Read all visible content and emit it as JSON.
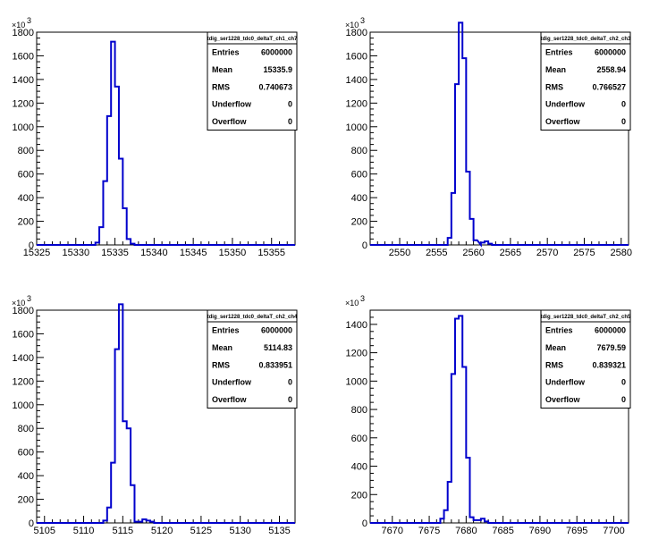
{
  "chart_data": [
    {
      "type": "bar",
      "style": "step-histogram",
      "title": "tdig_ser1228_tdc0_deltaT_ch1_ch7",
      "xlim": [
        15325,
        15358
      ],
      "xticks": [
        15325,
        15330,
        15335,
        15340,
        15345,
        15350,
        15355
      ],
      "ylim": [
        0,
        1800
      ],
      "yticks": [
        0,
        200,
        400,
        600,
        800,
        1000,
        1200,
        1400,
        1600,
        1800
      ],
      "y_exponent": "×10",
      "y_exponent_power": "3",
      "line_color": "#0000cc",
      "bin_width": 0.5,
      "bins": [
        {
          "x": 15332.5,
          "y": 20
        },
        {
          "x": 15333.0,
          "y": 150
        },
        {
          "x": 15333.5,
          "y": 540
        },
        {
          "x": 15334.0,
          "y": 1090
        },
        {
          "x": 15334.5,
          "y": 1720
        },
        {
          "x": 15335.0,
          "y": 1340
        },
        {
          "x": 15335.5,
          "y": 730
        },
        {
          "x": 15336.0,
          "y": 310
        },
        {
          "x": 15336.5,
          "y": 50
        },
        {
          "x": 15337.0,
          "y": 10
        }
      ],
      "stats": [
        {
          "label": "Entries",
          "value": "6000000"
        },
        {
          "label": "Mean",
          "value": "15335.9"
        },
        {
          "label": "RMS",
          "value": "0.740673"
        },
        {
          "label": "Underflow",
          "value": "0"
        },
        {
          "label": "Overflow",
          "value": "0"
        }
      ]
    },
    {
      "type": "bar",
      "style": "step-histogram",
      "title": "tdig_ser1228_tdc0_deltaT_ch2_ch3",
      "xlim": [
        2546,
        2581
      ],
      "xticks": [
        2550,
        2555,
        2560,
        2565,
        2570,
        2575,
        2580
      ],
      "ylim": [
        0,
        1800
      ],
      "yticks": [
        0,
        200,
        400,
        600,
        800,
        1000,
        1200,
        1400,
        1600,
        1800
      ],
      "y_exponent": "×10",
      "y_exponent_power": "3",
      "line_color": "#0000cc",
      "bin_width": 0.5,
      "bins": [
        {
          "x": 2556.5,
          "y": 60
        },
        {
          "x": 2557.0,
          "y": 440
        },
        {
          "x": 2557.5,
          "y": 1360
        },
        {
          "x": 2558.0,
          "y": 1880
        },
        {
          "x": 2558.5,
          "y": 1580
        },
        {
          "x": 2559.0,
          "y": 620
        },
        {
          "x": 2559.5,
          "y": 220
        },
        {
          "x": 2560.0,
          "y": 40
        },
        {
          "x": 2561.0,
          "y": 20
        },
        {
          "x": 2561.5,
          "y": 30
        },
        {
          "x": 2562.0,
          "y": 10
        }
      ],
      "stats": [
        {
          "label": "Entries",
          "value": "6000000"
        },
        {
          "label": "Mean",
          "value": "2558.94"
        },
        {
          "label": "RMS",
          "value": "0.766527"
        },
        {
          "label": "Underflow",
          "value": "0"
        },
        {
          "label": "Overflow",
          "value": "0"
        }
      ]
    },
    {
      "type": "bar",
      "style": "step-histogram",
      "title": "tdig_ser1228_tdc0_deltaT_ch2_ch4",
      "xlim": [
        5104,
        5137
      ],
      "xticks": [
        5105,
        5110,
        5115,
        5120,
        5125,
        5130,
        5135
      ],
      "ylim": [
        0,
        1800
      ],
      "yticks": [
        0,
        200,
        400,
        600,
        800,
        1000,
        1200,
        1400,
        1600,
        1800
      ],
      "y_exponent": "×10",
      "y_exponent_power": "3",
      "line_color": "#0000cc",
      "bin_width": 0.5,
      "bins": [
        {
          "x": 5112.5,
          "y": 20
        },
        {
          "x": 5113.0,
          "y": 130
        },
        {
          "x": 5113.5,
          "y": 510
        },
        {
          "x": 5114.0,
          "y": 1470
        },
        {
          "x": 5114.5,
          "y": 1850
        },
        {
          "x": 5115.0,
          "y": 860
        },
        {
          "x": 5115.5,
          "y": 800
        },
        {
          "x": 5116.0,
          "y": 320
        },
        {
          "x": 5116.5,
          "y": 10
        },
        {
          "x": 5117.0,
          "y": 10
        },
        {
          "x": 5117.5,
          "y": 30
        },
        {
          "x": 5118.0,
          "y": 20
        },
        {
          "x": 5118.5,
          "y": 10
        }
      ],
      "stats": [
        {
          "label": "Entries",
          "value": "6000000"
        },
        {
          "label": "Mean",
          "value": "5114.83"
        },
        {
          "label": "RMS",
          "value": "0.833951"
        },
        {
          "label": "Underflow",
          "value": "0"
        },
        {
          "label": "Overflow",
          "value": "0"
        }
      ]
    },
    {
      "type": "bar",
      "style": "step-histogram",
      "title": "tdig_ser1228_tdc0_deltaT_ch2_ch5",
      "xlim": [
        7667,
        7702
      ],
      "xticks": [
        7670,
        7675,
        7680,
        7685,
        7690,
        7695,
        7700
      ],
      "ylim": [
        0,
        1500
      ],
      "yticks": [
        0,
        200,
        400,
        600,
        800,
        1000,
        1200,
        1400
      ],
      "y_exponent": "×10",
      "y_exponent_power": "3",
      "line_color": "#0000cc",
      "bin_width": 0.5,
      "bins": [
        {
          "x": 7676.5,
          "y": 30
        },
        {
          "x": 7677.0,
          "y": 90
        },
        {
          "x": 7677.5,
          "y": 290
        },
        {
          "x": 7678.0,
          "y": 1050
        },
        {
          "x": 7678.5,
          "y": 1440
        },
        {
          "x": 7679.0,
          "y": 1460
        },
        {
          "x": 7679.5,
          "y": 1100
        },
        {
          "x": 7680.0,
          "y": 460
        },
        {
          "x": 7680.5,
          "y": 40
        },
        {
          "x": 7681.0,
          "y": 20
        },
        {
          "x": 7681.5,
          "y": 20
        },
        {
          "x": 7682.0,
          "y": 30
        },
        {
          "x": 7682.5,
          "y": 10
        }
      ],
      "stats": [
        {
          "label": "Entries",
          "value": "6000000"
        },
        {
          "label": "Mean",
          "value": "7679.59"
        },
        {
          "label": "RMS",
          "value": "0.839321"
        },
        {
          "label": "Underflow",
          "value": "0"
        },
        {
          "label": "Overflow",
          "value": "0"
        }
      ]
    }
  ]
}
